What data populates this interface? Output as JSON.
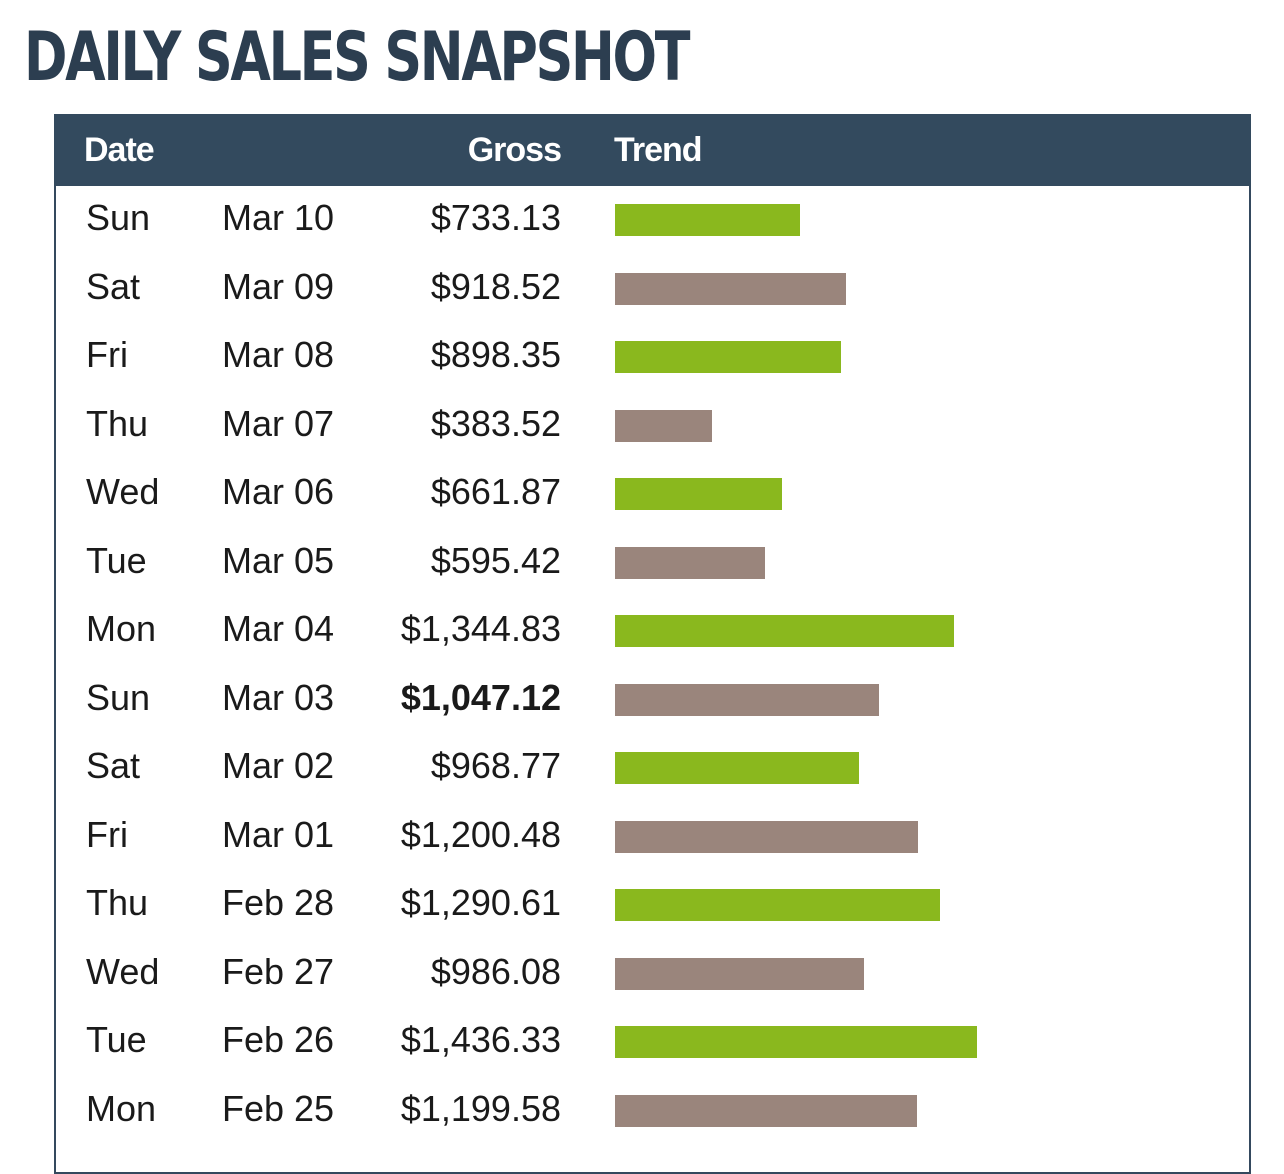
{
  "title": "DAILY SALES SNAPSHOT",
  "chart_data": {
    "type": "bar",
    "columns": [
      "Date",
      "Gross",
      "Trend"
    ],
    "colors": {
      "header_bg": "#334a5e",
      "up": "#8ab81e",
      "down": "#9a857c",
      "title": "#2c3e50"
    },
    "rows": [
      {
        "day": "Sun",
        "date": "Mar 10",
        "gross_label": "$733.13",
        "value": 733.13,
        "color": "#8ab81e",
        "bold": false
      },
      {
        "day": "Sat",
        "date": "Mar 09",
        "gross_label": "$918.52",
        "value": 918.52,
        "color": "#9a857c",
        "bold": false
      },
      {
        "day": "Fri",
        "date": "Mar 08",
        "gross_label": "$898.35",
        "value": 898.35,
        "color": "#8ab81e",
        "bold": false
      },
      {
        "day": "Thu",
        "date": "Mar 07",
        "gross_label": "$383.52",
        "value": 383.52,
        "color": "#9a857c",
        "bold": false
      },
      {
        "day": "Wed",
        "date": "Mar 06",
        "gross_label": "$661.87",
        "value": 661.87,
        "color": "#8ab81e",
        "bold": false
      },
      {
        "day": "Tue",
        "date": "Mar 05",
        "gross_label": "$595.42",
        "value": 595.42,
        "color": "#9a857c",
        "bold": false
      },
      {
        "day": "Mon",
        "date": "Mar 04",
        "gross_label": "$1,344.83",
        "value": 1344.83,
        "color": "#8ab81e",
        "bold": false
      },
      {
        "day": "Sun",
        "date": "Mar 03",
        "gross_label": "$1,047.12",
        "value": 1047.12,
        "color": "#9a857c",
        "bold": true
      },
      {
        "day": "Sat",
        "date": "Mar 02",
        "gross_label": "$968.77",
        "value": 968.77,
        "color": "#8ab81e",
        "bold": false
      },
      {
        "day": "Fri",
        "date": "Mar 01",
        "gross_label": "$1,200.48",
        "value": 1200.48,
        "color": "#9a857c",
        "bold": false
      },
      {
        "day": "Thu",
        "date": "Feb 28",
        "gross_label": "$1,290.61",
        "value": 1290.61,
        "color": "#8ab81e",
        "bold": false
      },
      {
        "day": "Wed",
        "date": "Feb 27",
        "gross_label": "$986.08",
        "value": 986.08,
        "color": "#9a857c",
        "bold": false
      },
      {
        "day": "Tue",
        "date": "Feb 26",
        "gross_label": "$1,436.33",
        "value": 1436.33,
        "color": "#8ab81e",
        "bold": false
      },
      {
        "day": "Mon",
        "date": "Feb 25",
        "gross_label": "$1,199.58",
        "value": 1199.58,
        "color": "#9a857c",
        "bold": false
      }
    ]
  }
}
